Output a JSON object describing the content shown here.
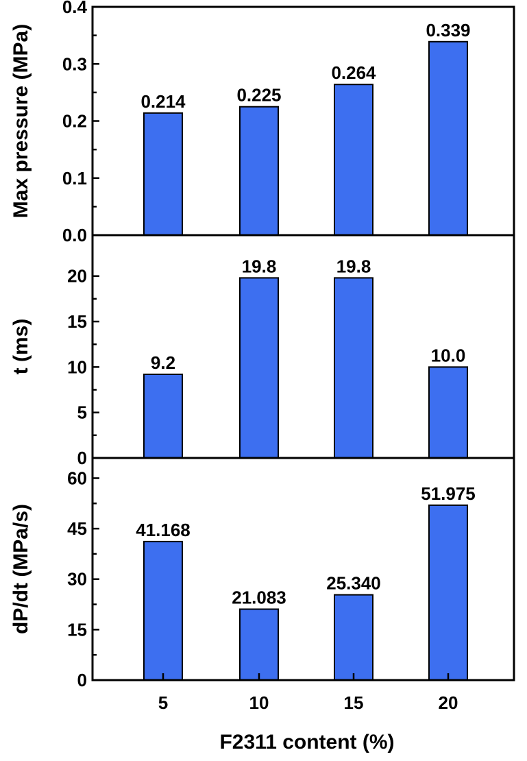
{
  "xlabel": "F2311 content (%)",
  "categories": [
    "5",
    "10",
    "15",
    "20"
  ],
  "bar_color": "#3d6ff0",
  "chart_data": [
    {
      "type": "bar",
      "categories": [
        "5",
        "10",
        "15",
        "20"
      ],
      "values": [
        0.214,
        0.225,
        0.264,
        0.339
      ],
      "value_labels": [
        "0.214",
        "0.225",
        "0.264",
        "0.339"
      ],
      "ylabel": "Max pressure (MPa)",
      "ylim": [
        0,
        0.4
      ],
      "yticks": [
        0.0,
        0.1,
        0.2,
        0.3,
        0.4
      ],
      "ytick_labels": [
        "0.0",
        "0.1",
        "0.2",
        "0.3",
        "0.4"
      ]
    },
    {
      "type": "bar",
      "categories": [
        "5",
        "10",
        "15",
        "20"
      ],
      "values": [
        9.2,
        19.8,
        19.8,
        10.0
      ],
      "value_labels": [
        "9.2",
        "19.8",
        "19.8",
        "10.0"
      ],
      "ylabel": "t (ms)",
      "ylim": [
        0,
        24.5
      ],
      "yticks": [
        0,
        5,
        10,
        15,
        20
      ],
      "ytick_labels": [
        "0",
        "5",
        "10",
        "15",
        "20"
      ]
    },
    {
      "type": "bar",
      "categories": [
        "5",
        "10",
        "15",
        "20"
      ],
      "values": [
        41.168,
        21.083,
        25.34,
        51.975
      ],
      "value_labels": [
        "41.168",
        "21.083",
        "25.340",
        "51.975"
      ],
      "ylabel": "dP/dt (MPa/s)",
      "ylim": [
        0,
        66
      ],
      "yticks": [
        0,
        15,
        30,
        45,
        60
      ],
      "ytick_labels": [
        "0",
        "15",
        "30",
        "45",
        "60"
      ]
    }
  ]
}
